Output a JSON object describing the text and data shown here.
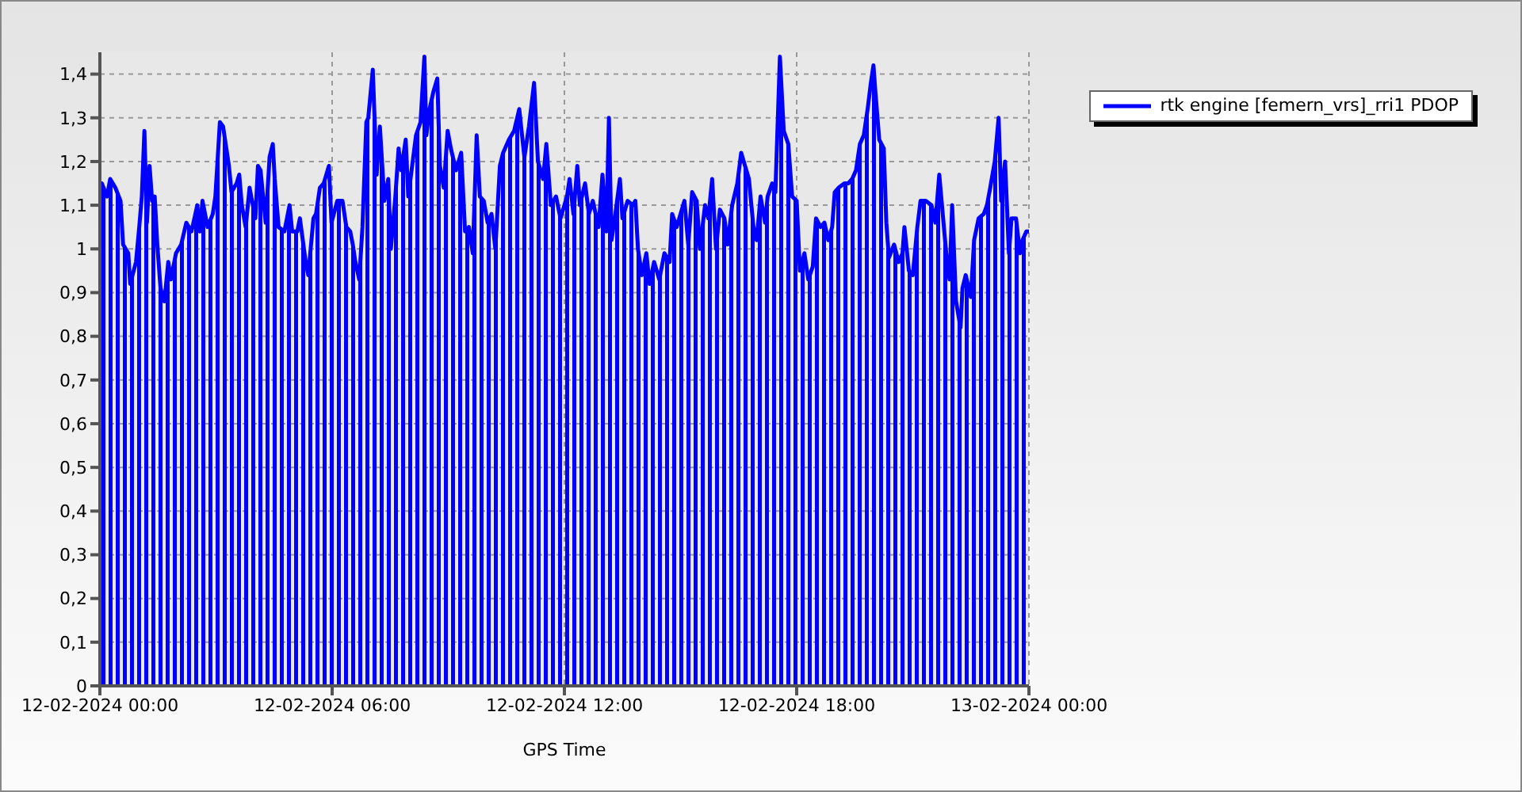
{
  "chart_data": {
    "type": "area",
    "xlabel": "GPS Time",
    "legend": "top right",
    "grid": true,
    "line_style": "solid",
    "marker": "none",
    "xlim": [
      "2024-02-12T00:00",
      "2024-02-13T00:00"
    ],
    "xticks": [
      {
        "value": "2024-02-12T00:00",
        "label": "12-02-2024 00:00"
      },
      {
        "value": "2024-02-12T06:00",
        "label": "12-02-2024 06:00"
      },
      {
        "value": "2024-02-12T12:00",
        "label": "12-02-2024 12:00"
      },
      {
        "value": "2024-02-12T18:00",
        "label": "12-02-2024 18:00"
      },
      {
        "value": "2024-02-13T00:00",
        "label": "13-02-2024 00:00"
      }
    ],
    "ylim": [
      0,
      1.45
    ],
    "yticks": [
      {
        "value": 0,
        "label": "0"
      },
      {
        "value": 0.1,
        "label": "0,1"
      },
      {
        "value": 0.2,
        "label": "0,2"
      },
      {
        "value": 0.3,
        "label": "0,3"
      },
      {
        "value": 0.4,
        "label": "0,4"
      },
      {
        "value": 0.5,
        "label": "0,5"
      },
      {
        "value": 0.6,
        "label": "0,6"
      },
      {
        "value": 0.7,
        "label": "0,7"
      },
      {
        "value": 0.8,
        "label": "0,8"
      },
      {
        "value": 0.9,
        "label": "0,9"
      },
      {
        "value": 1,
        "label": "1"
      },
      {
        "value": 1.1,
        "label": "1,1"
      },
      {
        "value": 1.2,
        "label": "1,2"
      },
      {
        "value": 1.3,
        "label": "1,3"
      },
      {
        "value": 1.4,
        "label": "1,4"
      }
    ],
    "x": [
      "2024-02-12T00:00",
      "2024-02-12T00:03",
      "2024-02-12T00:11",
      "2024-02-12T00:16",
      "2024-02-12T00:24",
      "2024-02-12T00:32",
      "2024-02-12T00:36",
      "2024-02-12T00:44",
      "2024-02-12T00:47",
      "2024-02-12T00:56",
      "2024-02-12T01:01",
      "2024-02-12T01:05",
      "2024-02-12T01:09",
      "2024-02-12T01:13",
      "2024-02-12T01:17",
      "2024-02-12T01:21",
      "2024-02-12T01:25",
      "2024-02-12T01:29",
      "2024-02-12T01:34",
      "2024-02-12T01:40",
      "2024-02-12T01:46",
      "2024-02-12T01:50",
      "2024-02-12T01:58",
      "2024-02-12T02:06",
      "2024-02-12T02:14",
      "2024-02-12T02:22",
      "2024-02-12T02:31",
      "2024-02-12T02:35",
      "2024-02-12T02:39",
      "2024-02-12T02:47",
      "2024-02-12T02:55",
      "2024-02-12T02:59",
      "2024-02-12T03:06",
      "2024-02-12T03:11",
      "2024-02-12T03:16",
      "2024-02-12T03:20",
      "2024-02-12T03:24",
      "2024-02-12T03:32",
      "2024-02-12T03:36",
      "2024-02-12T03:40",
      "2024-02-12T03:46",
      "2024-02-12T03:52",
      "2024-02-12T04:01",
      "2024-02-12T04:05",
      "2024-02-12T04:09",
      "2024-02-12T04:17",
      "2024-02-12T04:23",
      "2024-02-12T04:28",
      "2024-02-12T04:31",
      "2024-02-12T04:37",
      "2024-02-12T04:46",
      "2024-02-12T04:54",
      "2024-02-12T04:58",
      "2024-02-12T05:06",
      "2024-02-12T05:10",
      "2024-02-12T05:19",
      "2024-02-12T05:23",
      "2024-02-12T05:31",
      "2024-02-12T05:35",
      "2024-02-12T05:41",
      "2024-02-12T05:47",
      "2024-02-12T05:55",
      "2024-02-12T05:59",
      "2024-02-12T06:08",
      "2024-02-12T06:16",
      "2024-02-12T06:22",
      "2024-02-12T06:28",
      "2024-02-12T06:32",
      "2024-02-12T06:36",
      "2024-02-12T06:42",
      "2024-02-12T06:47",
      "2024-02-12T06:53",
      "2024-02-12T06:56",
      "2024-02-12T07:03",
      "2024-02-12T07:09",
      "2024-02-12T07:14",
      "2024-02-12T07:21",
      "2024-02-12T07:27",
      "2024-02-12T07:31",
      "2024-02-12T07:38",
      "2024-02-12T07:43",
      "2024-02-12T07:47",
      "2024-02-12T07:54",
      "2024-02-12T07:58",
      "2024-02-12T08:04",
      "2024-02-12T08:10",
      "2024-02-12T08:17",
      "2024-02-12T08:23",
      "2024-02-12T08:26",
      "2024-02-12T08:31",
      "2024-02-12T08:37",
      "2024-02-12T08:43",
      "2024-02-12T08:47",
      "2024-02-12T08:53",
      "2024-02-12T08:59",
      "2024-02-12T09:04",
      "2024-02-12T09:12",
      "2024-02-12T09:20",
      "2024-02-12T09:26",
      "2024-02-12T09:32",
      "2024-02-12T09:38",
      "2024-02-12T09:44",
      "2024-02-12T09:49",
      "2024-02-12T09:55",
      "2024-02-12T10:01",
      "2024-02-12T10:07",
      "2024-02-12T10:13",
      "2024-02-12T10:20",
      "2024-02-12T10:25",
      "2024-02-12T10:34",
      "2024-02-12T10:42",
      "2024-02-12T10:50",
      "2024-02-12T10:58",
      "2024-02-12T11:05",
      "2024-02-12T11:13",
      "2024-02-12T11:19",
      "2024-02-12T11:27",
      "2024-02-12T11:32",
      "2024-02-12T11:39",
      "2024-02-12T11:47",
      "2024-02-12T11:54",
      "2024-02-12T12:04",
      "2024-02-12T12:08",
      "2024-02-12T12:14",
      "2024-02-12T12:20",
      "2024-02-12T12:24",
      "2024-02-12T12:32",
      "2024-02-12T12:38",
      "2024-02-12T12:44",
      "2024-02-12T12:53",
      "2024-02-12T12:59",
      "2024-02-12T13:05",
      "2024-02-12T13:09",
      "2024-02-12T13:13",
      "2024-02-12T13:19",
      "2024-02-12T13:26",
      "2024-02-12T13:30",
      "2024-02-12T13:38",
      "2024-02-12T13:46",
      "2024-02-12T13:50",
      "2024-02-12T13:54",
      "2024-02-12T14:00",
      "2024-02-12T14:07",
      "2024-02-12T14:12",
      "2024-02-12T14:19",
      "2024-02-12T14:27",
      "2024-02-12T14:35",
      "2024-02-12T14:43",
      "2024-02-12T14:47",
      "2024-02-12T14:54",
      "2024-02-12T15:00",
      "2024-02-12T15:06",
      "2024-02-12T15:12",
      "2024-02-12T15:18",
      "2024-02-12T15:25",
      "2024-02-12T15:30",
      "2024-02-12T15:38",
      "2024-02-12T15:43",
      "2024-02-12T15:49",
      "2024-02-12T15:55",
      "2024-02-12T16:01",
      "2024-02-12T16:08",
      "2024-02-12T16:13",
      "2024-02-12T16:20",
      "2024-02-12T16:28",
      "2024-02-12T16:34",
      "2024-02-12T16:40",
      "2024-02-12T16:46",
      "2024-02-12T16:53",
      "2024-02-12T16:58",
      "2024-02-12T17:04",
      "2024-02-12T17:11",
      "2024-02-12T17:15",
      "2024-02-12T17:22",
      "2024-02-12T17:27",
      "2024-02-12T17:34",
      "2024-02-12T17:40",
      "2024-02-12T17:47",
      "2024-02-12T17:53",
      "2024-02-12T18:00",
      "2024-02-12T18:05",
      "2024-02-12T18:12",
      "2024-02-12T18:18",
      "2024-02-12T18:25",
      "2024-02-12T18:30",
      "2024-02-12T18:37",
      "2024-02-12T18:43",
      "2024-02-12T18:49",
      "2024-02-12T18:55",
      "2024-02-12T18:59",
      "2024-02-12T19:05",
      "2024-02-12T19:14",
      "2024-02-12T19:20",
      "2024-02-12T19:26",
      "2024-02-12T19:32",
      "2024-02-12T19:38",
      "2024-02-12T19:44",
      "2024-02-12T19:50",
      "2024-02-12T19:55",
      "2024-02-12T19:59",
      "2024-02-12T20:02",
      "2024-02-12T20:08",
      "2024-02-12T20:15",
      "2024-02-12T20:19",
      "2024-02-12T20:23",
      "2024-02-12T20:31",
      "2024-02-12T20:38",
      "2024-02-12T20:44",
      "2024-02-12T20:47",
      "2024-02-12T20:54",
      "2024-02-12T21:00",
      "2024-02-12T21:07",
      "2024-02-12T21:12",
      "2024-02-12T21:20",
      "2024-02-12T21:29",
      "2024-02-12T21:35",
      "2024-02-12T21:41",
      "2024-02-12T21:47",
      "2024-02-12T21:53",
      "2024-02-12T21:57",
      "2024-02-12T22:01",
      "2024-02-12T22:07",
      "2024-02-12T22:14",
      "2024-02-12T22:17",
      "2024-02-12T22:22",
      "2024-02-12T22:30",
      "2024-02-12T22:35",
      "2024-02-12T22:42",
      "2024-02-12T22:50",
      "2024-02-12T22:55",
      "2024-02-12T23:00",
      "2024-02-12T23:07",
      "2024-02-12T23:13",
      "2024-02-12T23:17",
      "2024-02-12T23:23",
      "2024-02-12T23:29",
      "2024-02-12T23:33",
      "2024-02-12T23:40",
      "2024-02-12T23:46",
      "2024-02-12T23:50",
      "2024-02-12T23:56",
      "2024-02-13T00:00"
    ],
    "series": [
      {
        "name": "rtk engine [femern_vrs]_rri1 PDOP",
        "color": "#0000ff",
        "values": [
          1.11,
          1.15,
          1.12,
          1.16,
          1.14,
          1.11,
          1.01,
          0.99,
          0.92,
          0.97,
          1.05,
          1.12,
          1.27,
          1.06,
          1.19,
          1.11,
          1.12,
          1.01,
          0.91,
          0.88,
          0.97,
          0.93,
          0.99,
          1.01,
          1.06,
          1.04,
          1.1,
          1.04,
          1.11,
          1.05,
          1.08,
          1.12,
          1.29,
          1.28,
          1.23,
          1.19,
          1.13,
          1.15,
          1.17,
          1.1,
          1.05,
          1.14,
          1.07,
          1.19,
          1.18,
          1.06,
          1.21,
          1.24,
          1.16,
          1.05,
          1.04,
          1.1,
          1.04,
          1.04,
          1.07,
          0.97,
          0.94,
          1.07,
          1.08,
          1.14,
          1.15,
          1.19,
          1.06,
          1.11,
          1.11,
          1.05,
          1.04,
          1.01,
          0.97,
          0.93,
          1.05,
          1.29,
          1.3,
          1.41,
          1.17,
          1.28,
          1.11,
          1.16,
          1,
          1.12,
          1.23,
          1.18,
          1.25,
          1.12,
          1.19,
          1.26,
          1.29,
          1.44,
          1.26,
          1.32,
          1.36,
          1.39,
          1.19,
          1.14,
          1.27,
          1.23,
          1.18,
          1.22,
          1.04,
          1.05,
          0.99,
          1.26,
          1.12,
          1.11,
          1.06,
          1.08,
          1,
          1.19,
          1.22,
          1.25,
          1.27,
          1.32,
          1.21,
          1.28,
          1.38,
          1.2,
          1.16,
          1.24,
          1.1,
          1.12,
          1.07,
          1.12,
          1.16,
          1.08,
          1.19,
          1.1,
          1.15,
          1.08,
          1.11,
          1.05,
          1.17,
          1.04,
          1.3,
          1.02,
          1.08,
          1.16,
          1.07,
          1.11,
          1.1,
          1.11,
          1,
          0.94,
          0.99,
          0.92,
          0.97,
          0.93,
          0.99,
          0.97,
          1.08,
          1.05,
          1.08,
          1.11,
          1.01,
          1.13,
          1.11,
          1,
          1.1,
          1.07,
          1.16,
          1,
          1.09,
          1.07,
          1.01,
          1.1,
          1.15,
          1.22,
          1.19,
          1.16,
          1.05,
          1.02,
          1.12,
          1.06,
          1.12,
          1.15,
          1.13,
          1.44,
          1.27,
          1.24,
          1.12,
          1.11,
          0.95,
          0.99,
          0.93,
          0.96,
          1.07,
          1.05,
          1.06,
          1.02,
          1.05,
          1.13,
          1.14,
          1.15,
          1.15,
          1.16,
          1.18,
          1.24,
          1.26,
          1.32,
          1.38,
          1.42,
          1.36,
          1.25,
          1.23,
          1.06,
          0.98,
          1.01,
          0.97,
          0.99,
          1.05,
          0.95,
          0.94,
          1.05,
          1.11,
          1.11,
          1.1,
          1.06,
          1.17,
          1.07,
          0.97,
          0.93,
          1.1,
          0.88,
          0.82,
          0.91,
          0.94,
          0.89,
          1.02,
          1.07,
          1.08,
          1.1,
          1.14,
          1.2,
          1.3,
          1.11,
          1.2,
          0.99,
          1.07,
          1.07,
          0.99,
          1.02,
          1.04,
          1.04
        ]
      }
    ]
  }
}
